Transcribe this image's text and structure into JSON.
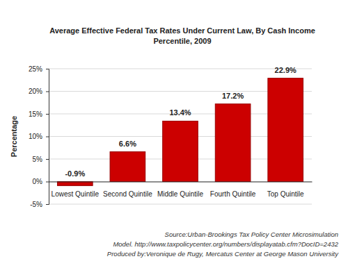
{
  "chart_data": {
    "type": "bar",
    "title": "Average Effective Federal Tax Rates Under Current Law, By Cash Income Percentile, 2009",
    "y_label": "Percentage",
    "categories": [
      "Lowest Quintile",
      "Second Quintile",
      "Middle Quintile",
      "Fourth Quintile",
      "Top Quintile"
    ],
    "values": [
      -0.9,
      6.6,
      13.4,
      17.2,
      22.9
    ],
    "value_labels": [
      "-0.9%",
      "6.6%",
      "13.4%",
      "17.2%",
      "22.9%"
    ],
    "color": "#cc0000",
    "ylim": [
      -5,
      25
    ],
    "yticks": [
      {
        "value": -5,
        "label": "-5%"
      },
      {
        "value": 0,
        "label": "0%"
      },
      {
        "value": 5,
        "label": "5%"
      },
      {
        "value": 10,
        "label": "10%"
      },
      {
        "value": 15,
        "label": "15%"
      },
      {
        "value": 20,
        "label": "20%"
      },
      {
        "value": 25,
        "label": "25%"
      }
    ],
    "grid": true,
    "data_labels": true,
    "annotations": [
      "Source:Urban-Brookings Tax Policy Center Microsimulation",
      "Model. http://www.taxpolicycenter.org/numbers/displayatab.cfm?DocID=2432",
      "Produced by:Veronique de Rugy, Mercatus Center at George Mason University"
    ]
  }
}
